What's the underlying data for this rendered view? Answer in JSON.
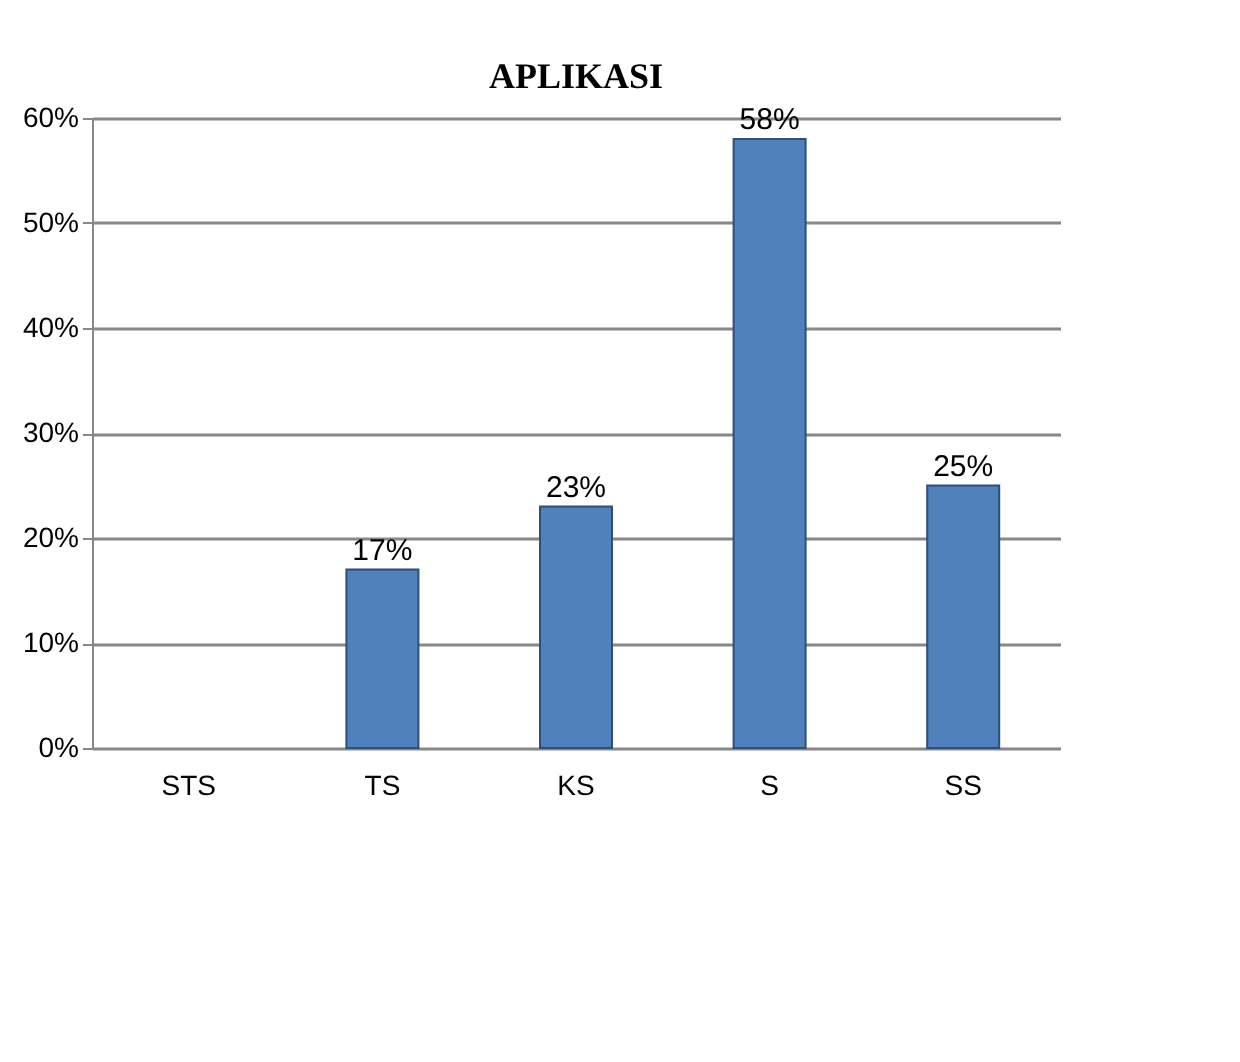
{
  "chart_data": {
    "type": "bar",
    "title": "APLIKASI",
    "categories": [
      "STS",
      "TS",
      "KS",
      "S",
      "SS"
    ],
    "values": [
      null,
      17,
      23,
      58,
      25
    ],
    "value_labels": [
      null,
      "17%",
      "23%",
      "58%",
      "25%"
    ],
    "color": "#4f81bd",
    "ylim": [
      0,
      60
    ],
    "yticks": [
      {
        "value": 0,
        "label": "0%"
      },
      {
        "value": 10,
        "label": "10%"
      },
      {
        "value": 20,
        "label": "20%"
      },
      {
        "value": 30,
        "label": "30%"
      },
      {
        "value": 40,
        "label": "40%"
      },
      {
        "value": 50,
        "label": "50%"
      },
      {
        "value": 60,
        "label": "60%"
      }
    ],
    "grid": "y"
  }
}
